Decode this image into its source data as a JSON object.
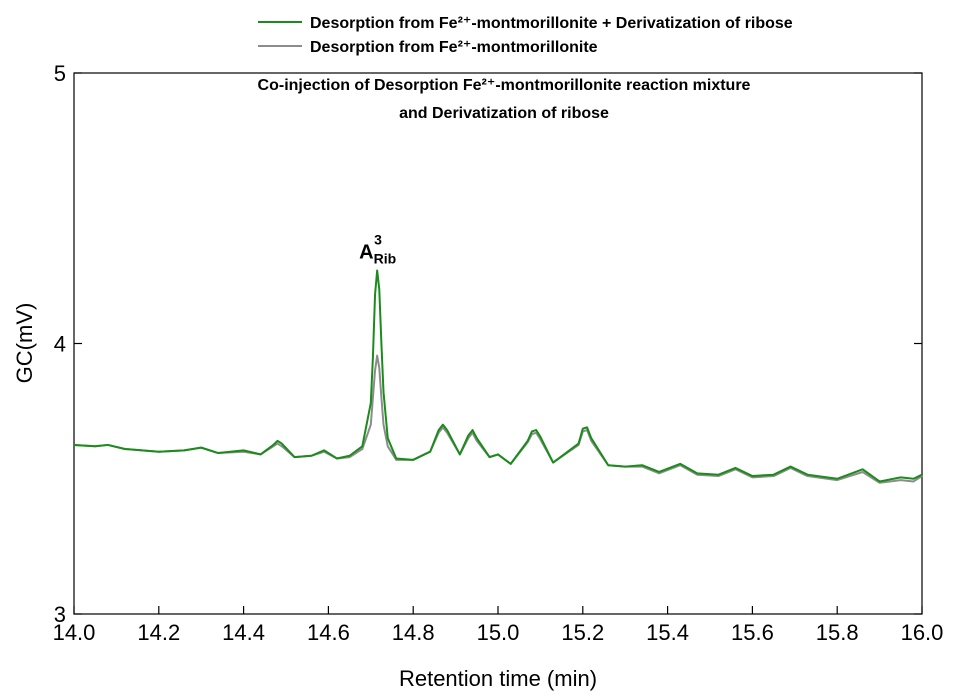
{
  "chart_data": {
    "type": "line",
    "title": [
      "Co-injection of Desorption Fe²⁺-montmorillonite reaction mixture",
      "and Derivatization of ribose"
    ],
    "x_label": "Retention time (min)",
    "y_label": "GC(mV)",
    "annotation": {
      "text": "A",
      "superscript": "3",
      "subscript": "Rib"
    },
    "xlim": [
      14,
      16
    ],
    "xticks": [
      {
        "value": 14,
        "label": "14.0"
      },
      14.2,
      14.4,
      14.6,
      14.8,
      {
        "value": 15,
        "label": "15.0"
      },
      15.2,
      15.4,
      15.6,
      15.8,
      {
        "value": 16,
        "label": "16.0"
      }
    ],
    "ylim": [
      3,
      5
    ],
    "yticks": [
      3,
      4,
      5
    ],
    "grid": false,
    "legend": "top-right",
    "x": [
      14.0,
      14.05,
      14.08,
      14.12,
      14.2,
      14.26,
      14.3,
      14.34,
      14.4,
      14.44,
      14.47,
      14.48,
      14.49,
      14.52,
      14.56,
      14.59,
      14.62,
      14.65,
      14.68,
      14.7,
      14.705,
      14.71,
      14.715,
      14.72,
      14.725,
      14.73,
      14.74,
      14.76,
      14.8,
      14.84,
      14.86,
      14.87,
      14.88,
      14.91,
      14.93,
      14.94,
      14.95,
      14.98,
      15.0,
      15.03,
      15.07,
      15.08,
      15.09,
      15.1,
      15.13,
      15.19,
      15.2,
      15.21,
      15.22,
      15.26,
      15.3,
      15.34,
      15.38,
      15.43,
      15.47,
      15.52,
      15.56,
      15.6,
      15.65,
      15.69,
      15.73,
      15.8,
      15.86,
      15.9,
      15.95,
      15.98,
      16.0
    ],
    "series": [
      {
        "name": "Desorption from Fe²⁺-montmorillonite + Derivatization of ribose",
        "color": "#1a8c1a",
        "values": [
          3.625,
          3.62,
          3.625,
          3.61,
          3.6,
          3.605,
          3.615,
          3.595,
          3.605,
          3.59,
          3.625,
          3.64,
          3.63,
          3.58,
          3.585,
          3.605,
          3.575,
          3.585,
          3.62,
          3.78,
          3.95,
          4.18,
          4.27,
          4.2,
          4.0,
          3.82,
          3.65,
          3.575,
          3.57,
          3.6,
          3.68,
          3.7,
          3.68,
          3.59,
          3.66,
          3.68,
          3.65,
          3.58,
          3.59,
          3.555,
          3.64,
          3.675,
          3.68,
          3.655,
          3.56,
          3.63,
          3.685,
          3.69,
          3.65,
          3.55,
          3.545,
          3.55,
          3.525,
          3.555,
          3.52,
          3.515,
          3.54,
          3.51,
          3.515,
          3.545,
          3.515,
          3.5,
          3.535,
          3.49,
          3.505,
          3.5,
          3.515
        ]
      },
      {
        "name": "Desorption from Fe²⁺-montmorillonite",
        "color": "#8c8c8c",
        "values": [
          3.625,
          3.62,
          3.625,
          3.61,
          3.6,
          3.605,
          3.615,
          3.595,
          3.6,
          3.59,
          3.62,
          3.63,
          3.62,
          3.58,
          3.585,
          3.6,
          3.575,
          3.58,
          3.61,
          3.7,
          3.8,
          3.9,
          3.955,
          3.91,
          3.8,
          3.7,
          3.62,
          3.57,
          3.57,
          3.6,
          3.67,
          3.69,
          3.67,
          3.59,
          3.65,
          3.67,
          3.64,
          3.58,
          3.59,
          3.555,
          3.635,
          3.665,
          3.67,
          3.645,
          3.56,
          3.625,
          3.675,
          3.68,
          3.64,
          3.55,
          3.545,
          3.545,
          3.52,
          3.55,
          3.515,
          3.51,
          3.535,
          3.505,
          3.51,
          3.54,
          3.51,
          3.495,
          3.525,
          3.485,
          3.495,
          3.49,
          3.51
        ]
      }
    ]
  }
}
